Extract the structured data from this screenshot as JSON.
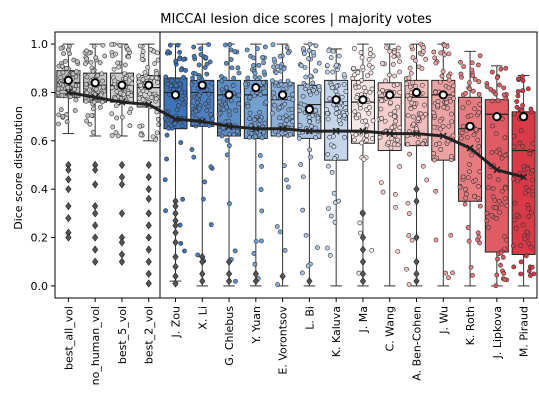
{
  "chart_data": {
    "type": "box",
    "title": "MICCAI lesion dice scores | majority votes",
    "xlabel": "",
    "ylabel": "Dice score distribution",
    "ylim": [
      -0.05,
      1.05
    ],
    "yticks": [
      "0.0",
      "0.2",
      "0.4",
      "0.6",
      "0.8",
      "1.0"
    ],
    "categories": [
      "best_all_vol",
      "no_human_vol",
      "best_5_vol",
      "best_2_vol",
      "J. Zou",
      "X. Li",
      "G. Chlebus",
      "Y. Yuan",
      "E. Vorontsov",
      "L. Bi",
      "K. Kaluva",
      "J. Ma",
      "C. Wang",
      "A. Ben-Cohen",
      "J. Wu",
      "K. Roth",
      "J. Lipkova",
      "M. Piraud"
    ],
    "colors": [
      "#bdbdbd",
      "#c4c4c4",
      "#cbcbcb",
      "#d2d2d2",
      "#3f73b8",
      "#4d80c0",
      "#5d8ec8",
      "#739fd1",
      "#8aaed8",
      "#a8c2e2",
      "#c5d6ec",
      "#f6e7e7",
      "#f5cfcf",
      "#f3bcbc",
      "#eba2a2",
      "#e67b80",
      "#e05c64",
      "#d83a47"
    ],
    "q1": [
      0.78,
      0.76,
      0.76,
      0.74,
      0.65,
      0.66,
      0.62,
      0.61,
      0.62,
      0.61,
      0.52,
      0.59,
      0.56,
      0.58,
      0.52,
      0.35,
      0.14,
      0.13
    ],
    "median": [
      0.84,
      0.83,
      0.83,
      0.82,
      0.8,
      0.8,
      0.79,
      0.79,
      0.77,
      0.75,
      0.76,
      0.76,
      0.78,
      0.78,
      0.79,
      0.65,
      0.71,
      0.56
    ],
    "q3": [
      0.89,
      0.88,
      0.88,
      0.87,
      0.86,
      0.85,
      0.85,
      0.85,
      0.84,
      0.83,
      0.85,
      0.85,
      0.84,
      0.85,
      0.85,
      0.78,
      0.77,
      0.72
    ],
    "whisker_low": [
      0.63,
      0.62,
      0.62,
      0.6,
      0.02,
      0.0,
      0.0,
      0.0,
      0.0,
      0.0,
      0.0,
      0.0,
      0.0,
      0.0,
      0.0,
      0.0,
      0.0,
      0.0
    ],
    "whisker_high": [
      1.0,
      1.0,
      1.0,
      1.0,
      1.0,
      1.0,
      1.0,
      1.0,
      1.0,
      1.0,
      0.98,
      1.0,
      1.0,
      1.0,
      1.0,
      0.97,
      0.91,
      0.87
    ],
    "mean": [
      0.85,
      0.84,
      0.83,
      0.83,
      0.79,
      0.83,
      0.79,
      0.82,
      0.79,
      0.73,
      0.77,
      0.77,
      0.79,
      0.8,
      0.79,
      0.66,
      0.7,
      0.7
    ],
    "trend": [
      0.8,
      0.78,
      0.76,
      0.75,
      0.69,
      0.68,
      0.66,
      0.65,
      0.65,
      0.64,
      0.64,
      0.64,
      0.63,
      0.63,
      0.62,
      0.57,
      0.48,
      0.45
    ],
    "fliers": [
      [
        0.5,
        0.48,
        0.44,
        0.4,
        0.33,
        0.28,
        0.22,
        0.2
      ],
      [
        0.5,
        0.48,
        0.42,
        0.33,
        0.3,
        0.25,
        0.2,
        0.15,
        0.1
      ],
      [
        0.5,
        0.45,
        0.42,
        0.3,
        0.2,
        0.18,
        0.13,
        0.1
      ],
      [
        0.5,
        0.45,
        0.4,
        0.36,
        0.3,
        0.25,
        0.2,
        0.15,
        0.1,
        0.05,
        0.01
      ],
      [
        0.35,
        0.33,
        0.3,
        0.27,
        0.25,
        0.22,
        0.18,
        0.12,
        0.08,
        0.04,
        0.01
      ],
      [
        0.12,
        0.1,
        0.05,
        0.02
      ],
      [
        0.1,
        0.05,
        0.02
      ],
      [
        0.05,
        0.02
      ],
      [
        0.04
      ],
      [
        0.02
      ],
      [],
      [
        0.3,
        0.2,
        0.15,
        0.1,
        0.05,
        0.02
      ],
      [],
      [
        0.4,
        0.35,
        0.2,
        0.1,
        0.05,
        0.02
      ],
      [],
      [],
      [],
      []
    ]
  }
}
